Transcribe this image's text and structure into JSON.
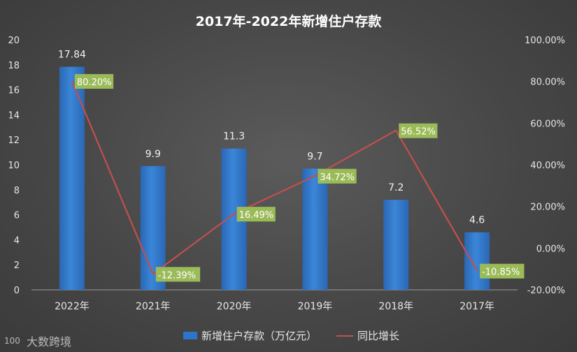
{
  "chart_data": {
    "type": "bar",
    "title": "2017年-2022年新增住户存款",
    "categories": [
      "2022年",
      "2021年",
      "2020年",
      "2019年",
      "2018年",
      "2017年"
    ],
    "series": [
      {
        "name": "新增住户存款（万亿元）",
        "type": "bar",
        "axis": "left",
        "values": [
          17.84,
          9.9,
          11.3,
          9.7,
          7.2,
          4.6
        ],
        "labels": [
          "17.84",
          "9.9",
          "11.3",
          "9.7",
          "7.2",
          "4.6"
        ],
        "color": "#2e75c9"
      },
      {
        "name": "同比增长",
        "type": "line",
        "axis": "right",
        "values": [
          80.2,
          -12.39,
          16.49,
          34.72,
          56.52,
          -10.85
        ],
        "labels": [
          "80.20%",
          "-12.39%",
          "16.49%",
          "34.72%",
          "56.52%",
          "-10.85%"
        ],
        "color": "#c0504d"
      }
    ],
    "left_axis": {
      "range": [
        0,
        20
      ],
      "ticks": [
        "0",
        "2",
        "4",
        "6",
        "8",
        "10",
        "12",
        "14",
        "16",
        "18",
        "20"
      ]
    },
    "right_axis": {
      "range": [
        -20,
        100
      ],
      "ticks": [
        "-20.00%",
        "0.00%",
        "20.00%",
        "40.00%",
        "60.00%",
        "80.00%",
        "100.00%"
      ]
    },
    "grid": false,
    "legend": "bottom"
  },
  "colors": {
    "bar": "#2e75c9",
    "line": "#c0504d",
    "label_bg": "#9bbb59"
  },
  "watermark": {
    "text": "大数跨境",
    "logo": "100"
  }
}
